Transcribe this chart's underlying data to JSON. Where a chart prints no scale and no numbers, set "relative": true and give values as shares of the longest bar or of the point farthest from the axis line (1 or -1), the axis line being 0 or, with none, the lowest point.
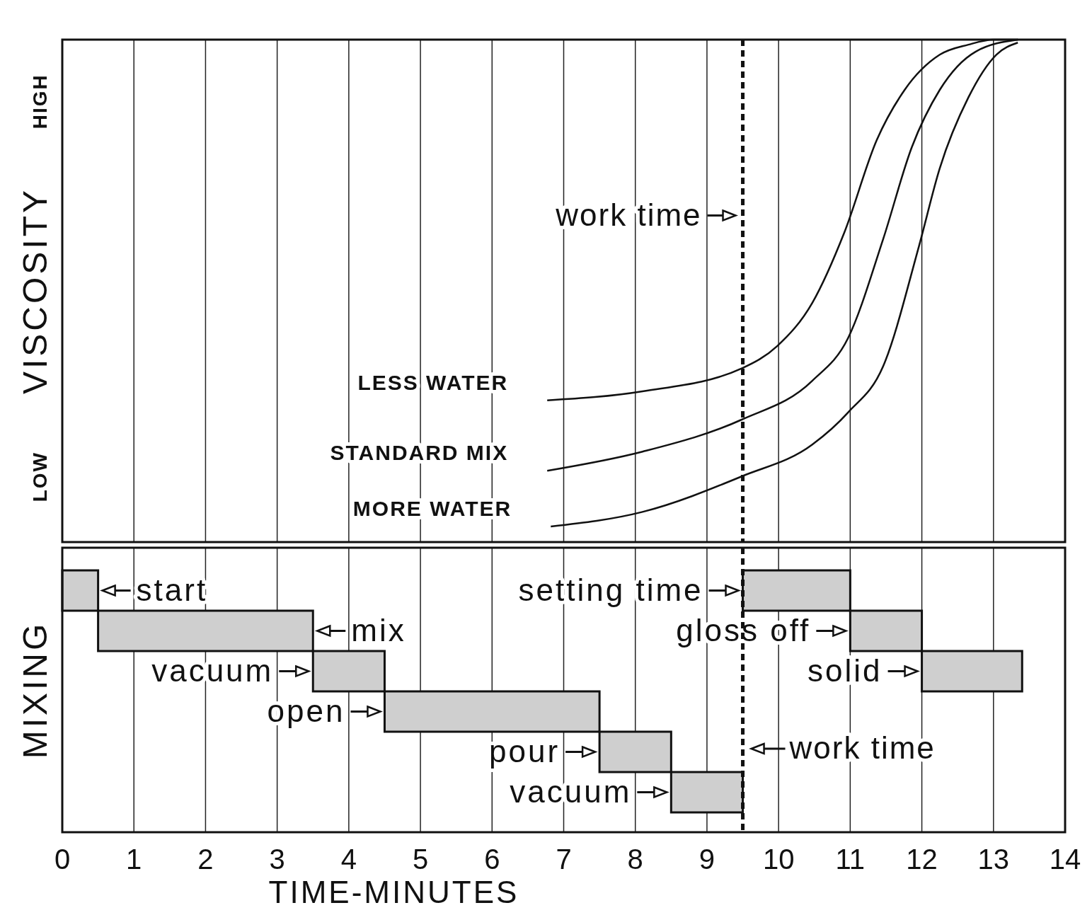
{
  "chart_data": [
    {
      "type": "line",
      "ylabel": "VISCOSITY",
      "xlim": [
        0,
        14
      ],
      "xticks": [
        0,
        1,
        2,
        3,
        4,
        5,
        6,
        7,
        8,
        9,
        10,
        11,
        12,
        13,
        14
      ],
      "relative": true,
      "annotations": [
        "LOW",
        "HIGH"
      ],
      "grid": "x",
      "tick_labels": "y",
      "marker": "none",
      "ref_lines": [
        {
          "axis": "x",
          "value": 9.5,
          "label": "work time",
          "line_style": "dashed",
          "color": "#111111"
        }
      ],
      "series": [
        {
          "name": "LESS WATER",
          "color": "#111111",
          "x": [
            6.77,
            8.1,
            9.49,
            9.98,
            10.47,
            10.92,
            11.37,
            11.76,
            12.25,
            12.65,
            13.0,
            13.34
          ],
          "values": [
            0.282,
            0.3,
            0.346,
            0.39,
            0.476,
            0.617,
            0.8,
            0.9,
            0.97,
            0.99,
            1,
            1
          ]
        },
        {
          "name": "STANDARD MIX",
          "color": "#111111",
          "x": [
            6.77,
            8.1,
            9.49,
            10.47,
            10.97,
            11.46,
            11.86,
            12.25,
            12.75,
            13.34
          ],
          "values": [
            0.142,
            0.18,
            0.244,
            0.321,
            0.406,
            0.603,
            0.786,
            0.9,
            0.976,
            1
          ]
        },
        {
          "name": "MORE WATER",
          "color": "#111111",
          "x": [
            6.82,
            8.1,
            9.49,
            10.47,
            10.97,
            11.46,
            11.96,
            12.25,
            12.65,
            13.04,
            13.34
          ],
          "values": [
            0.031,
            0.06,
            0.131,
            0.194,
            0.258,
            0.35,
            0.589,
            0.744,
            0.885,
            0.97,
            0.994
          ]
        }
      ]
    },
    {
      "type": "bar",
      "orientation": "horizontal",
      "xlabel": "TIME-MINUTES",
      "ylabel": "MIXING",
      "categories": [
        null,
        null,
        null,
        null,
        null,
        null
      ],
      "xlim": [
        0,
        14
      ],
      "xticks": [
        0,
        1,
        2,
        3,
        4,
        5,
        6,
        7,
        8,
        9,
        10,
        11,
        12,
        13,
        14
      ],
      "grid": "x",
      "tick_labels": "x",
      "ref_lines": [
        {
          "axis": "x",
          "value": 9.5,
          "label": "work time",
          "line_style": "dashed",
          "color": "#111111"
        }
      ],
      "series": [
        {
          "color": "#cfcfcf",
          "base": [
            0,
            0.5,
            3.5,
            4.5,
            7.5,
            8.5
          ],
          "values": [
            0.5,
            3,
            1,
            3,
            1,
            1
          ],
          "value_labels": [
            "start",
            "mix",
            "vacuum",
            "open",
            "pour",
            "vacuum"
          ]
        },
        {
          "color": "#cfcfcf",
          "base": [
            9.5,
            11,
            12,
            null,
            null,
            null
          ],
          "values": [
            1.5,
            1,
            1.4,
            null,
            null,
            null
          ],
          "value_labels": [
            "setting time",
            "gloss off",
            "solid",
            null,
            null,
            null
          ]
        }
      ]
    }
  ]
}
